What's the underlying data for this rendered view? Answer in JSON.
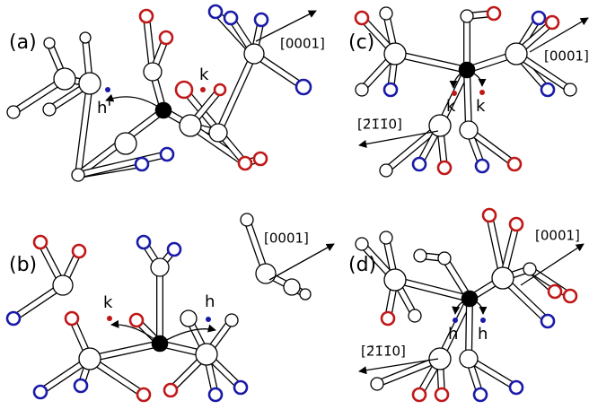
{
  "panels": [
    {
      "label": "(a)",
      "directions": [
        "[0001]"
      ],
      "sites": [
        "h'",
        "k"
      ]
    },
    {
      "label": "(b)",
      "directions": [
        "[0001]"
      ],
      "sites": [
        "k",
        "h"
      ]
    },
    {
      "label": "(c)",
      "directions": [
        "[0001]",
        "[2̄1̄1̄0]"
      ],
      "sites": [
        "k",
        "k"
      ]
    },
    {
      "label": "(d)",
      "directions": [
        "[0001]",
        "[2̄1̄1̄0]"
      ],
      "sites": [
        "h",
        "h"
      ]
    }
  ]
}
